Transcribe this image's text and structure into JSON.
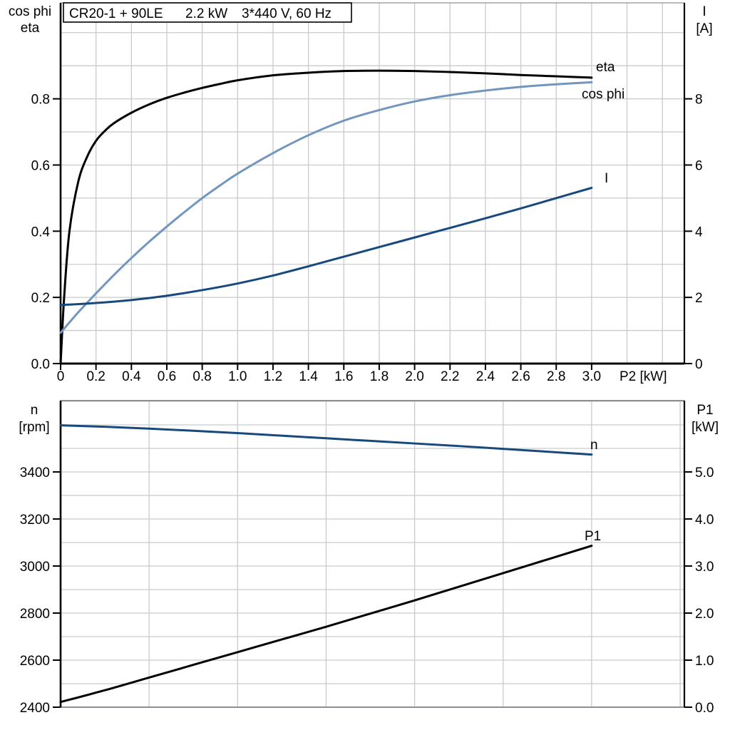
{
  "page": {
    "background": "#ffffff"
  },
  "colors": {
    "black": "#000000",
    "dark_blue": "#17497D",
    "light_blue": "#7396BE",
    "grid_gray": "#C7CBCF",
    "frame_gray": "#8D9196"
  },
  "chart_data": [
    {
      "id": "top-chart",
      "type": "line",
      "title": "CR20-1 + 90LE   2.2 kW   3*440 V, 60 Hz",
      "title_parts": [
        "CR20-1 + 90LE",
        "2.2 kW",
        "3*440 V, 60 Hz"
      ],
      "x_axis": {
        "label": "P2 [kW]",
        "range": [
          0,
          3.524
        ],
        "grid_step": 0.2,
        "ticks": [
          {
            "v": 0,
            "label": "0"
          },
          {
            "v": 0.2,
            "label": "0.2"
          },
          {
            "v": 0.4,
            "label": "0.4"
          },
          {
            "v": 0.6,
            "label": "0.6"
          },
          {
            "v": 0.8,
            "label": "0.8"
          },
          {
            "v": 1.0,
            "label": "1.0"
          },
          {
            "v": 1.2,
            "label": "1.2"
          },
          {
            "v": 1.4,
            "label": "1.4"
          },
          {
            "v": 1.6,
            "label": "1.6"
          },
          {
            "v": 1.8,
            "label": "1.8"
          },
          {
            "v": 2.0,
            "label": "2.0"
          },
          {
            "v": 2.2,
            "label": "2.2"
          },
          {
            "v": 2.4,
            "label": "2.4"
          },
          {
            "v": 2.6,
            "label": "2.6"
          },
          {
            "v": 2.8,
            "label": "2.8"
          },
          {
            "v": 3.0,
            "label": "3.0"
          }
        ]
      },
      "y_left": {
        "label_lines": [
          "cos phi",
          "eta"
        ],
        "range": [
          0,
          1.09
        ],
        "grid_step": 0.1,
        "ticks": [
          {
            "v": 0,
            "label": "0.0"
          },
          {
            "v": 0.2,
            "label": "0.2"
          },
          {
            "v": 0.4,
            "label": "0.4"
          },
          {
            "v": 0.6,
            "label": "0.6"
          },
          {
            "v": 0.8,
            "label": "0.8"
          }
        ]
      },
      "y_right": {
        "label_lines": [
          "I",
          "[A]"
        ],
        "range": [
          0,
          10.9
        ],
        "grid_step": 1,
        "ticks": [
          {
            "v": 0,
            "label": "0"
          },
          {
            "v": 2,
            "label": "2"
          },
          {
            "v": 4,
            "label": "4"
          },
          {
            "v": 6,
            "label": "6"
          },
          {
            "v": 8,
            "label": "8"
          }
        ]
      },
      "series": [
        {
          "name": "eta",
          "axis": "left",
          "color": "#000000",
          "points": [
            [
              0,
              0
            ],
            [
              0.02,
              0.2
            ],
            [
              0.05,
              0.4
            ],
            [
              0.1,
              0.55
            ],
            [
              0.15,
              0.625
            ],
            [
              0.2,
              0.673
            ],
            [
              0.25,
              0.703
            ],
            [
              0.3,
              0.726
            ],
            [
              0.4,
              0.758
            ],
            [
              0.5,
              0.783
            ],
            [
              0.6,
              0.803
            ],
            [
              0.7,
              0.819
            ],
            [
              0.8,
              0.833
            ],
            [
              0.9,
              0.845
            ],
            [
              1.0,
              0.856
            ],
            [
              1.2,
              0.871
            ],
            [
              1.4,
              0.879
            ],
            [
              1.6,
              0.884
            ],
            [
              1.8,
              0.885
            ],
            [
              2.0,
              0.884
            ],
            [
              2.2,
              0.881
            ],
            [
              2.4,
              0.877
            ],
            [
              2.6,
              0.872
            ],
            [
              2.8,
              0.868
            ],
            [
              3.0,
              0.864
            ]
          ]
        },
        {
          "name": "cos phi",
          "axis": "left",
          "color": "#7396BE",
          "points": [
            [
              0,
              0.093
            ],
            [
              0.1,
              0.155
            ],
            [
              0.2,
              0.212
            ],
            [
              0.3,
              0.267
            ],
            [
              0.4,
              0.319
            ],
            [
              0.5,
              0.368
            ],
            [
              0.6,
              0.414
            ],
            [
              0.7,
              0.458
            ],
            [
              0.8,
              0.5
            ],
            [
              0.9,
              0.538
            ],
            [
              1.0,
              0.574
            ],
            [
              1.2,
              0.636
            ],
            [
              1.4,
              0.69
            ],
            [
              1.6,
              0.734
            ],
            [
              1.8,
              0.766
            ],
            [
              2.0,
              0.792
            ],
            [
              2.2,
              0.811
            ],
            [
              2.4,
              0.825
            ],
            [
              2.6,
              0.836
            ],
            [
              2.8,
              0.844
            ],
            [
              3.0,
              0.85
            ]
          ]
        },
        {
          "name": "I",
          "axis": "right",
          "color": "#17497D",
          "points": [
            [
              0,
              1.77
            ],
            [
              0.2,
              1.83
            ],
            [
              0.4,
              1.92
            ],
            [
              0.6,
              2.05
            ],
            [
              0.8,
              2.22
            ],
            [
              1.0,
              2.42
            ],
            [
              1.2,
              2.66
            ],
            [
              1.4,
              2.94
            ],
            [
              1.6,
              3.23
            ],
            [
              1.8,
              3.52
            ],
            [
              2.0,
              3.81
            ],
            [
              2.2,
              4.1
            ],
            [
              2.4,
              4.39
            ],
            [
              2.6,
              4.69
            ],
            [
              2.8,
              5.0
            ],
            [
              3.0,
              5.31
            ]
          ]
        }
      ]
    },
    {
      "id": "bottom-chart",
      "type": "line",
      "x_axis": {
        "label": "",
        "range": [
          0,
          3.524
        ],
        "grid_step": 0.5,
        "ticks": []
      },
      "y_left": {
        "label_lines": [
          "n",
          "[rpm]"
        ],
        "range": [
          2400,
          3703
        ],
        "grid_step": 100,
        "ticks": [
          {
            "v": 2400,
            "label": "2400"
          },
          {
            "v": 2600,
            "label": "2600"
          },
          {
            "v": 2800,
            "label": "2800"
          },
          {
            "v": 3000,
            "label": "3000"
          },
          {
            "v": 3200,
            "label": "3200"
          },
          {
            "v": 3400,
            "label": "3400"
          }
        ]
      },
      "y_right": {
        "label_lines": [
          "P1",
          "[kW]"
        ],
        "range": [
          0,
          6.515
        ],
        "grid_step": 0.5,
        "ticks": [
          {
            "v": 0,
            "label": "0.0"
          },
          {
            "v": 1,
            "label": "1.0"
          },
          {
            "v": 2,
            "label": "2.0"
          },
          {
            "v": 3,
            "label": "3.0"
          },
          {
            "v": 4,
            "label": "4.0"
          },
          {
            "v": 5,
            "label": "5.0"
          }
        ]
      },
      "series": [
        {
          "name": "n",
          "axis": "left",
          "color": "#17497D",
          "points": [
            [
              0,
              3598
            ],
            [
              0.25,
              3592
            ],
            [
              0.5,
              3584
            ],
            [
              0.75,
              3575
            ],
            [
              1.0,
              3565
            ],
            [
              1.25,
              3554
            ],
            [
              1.5,
              3543
            ],
            [
              1.75,
              3532
            ],
            [
              2.0,
              3521
            ],
            [
              2.25,
              3510
            ],
            [
              2.5,
              3498
            ],
            [
              2.75,
              3486
            ],
            [
              3.0,
              3474
            ]
          ]
        },
        {
          "name": "P1",
          "axis": "right",
          "color": "#000000",
          "points": [
            [
              0,
              0.11
            ],
            [
              0.25,
              0.36
            ],
            [
              0.5,
              0.63
            ],
            [
              0.75,
              0.9
            ],
            [
              1.0,
              1.17
            ],
            [
              1.25,
              1.44
            ],
            [
              1.5,
              1.71
            ],
            [
              1.75,
              1.99
            ],
            [
              2.0,
              2.27
            ],
            [
              2.25,
              2.56
            ],
            [
              2.5,
              2.85
            ],
            [
              2.75,
              3.14
            ],
            [
              3.0,
              3.43
            ]
          ]
        }
      ]
    }
  ]
}
